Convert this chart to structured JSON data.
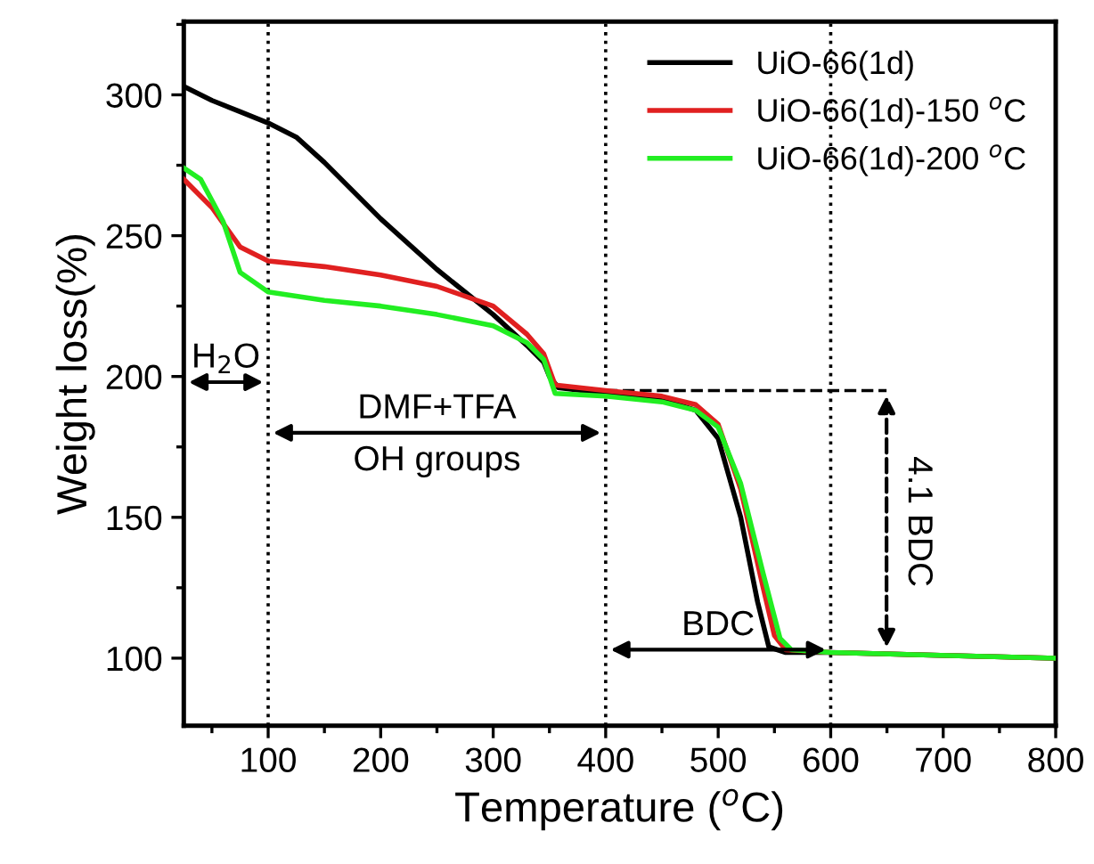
{
  "chart_data": {
    "type": "line",
    "xlabel": "Temperature ($^{o}$C)",
    "ylabel": "Weight loss(%)",
    "xlim": [
      25,
      800
    ],
    "ylim": [
      76,
      326
    ],
    "xticks": [
      100,
      200,
      300,
      400,
      500,
      600,
      700,
      800
    ],
    "yticks": [
      100,
      150,
      200,
      250,
      300
    ],
    "grid": false,
    "legend": "top right",
    "line_style": "solid",
    "marker": "none",
    "series": [
      {
        "name": "UiO-66(1d)",
        "color": "#000000",
        "x": [
          25,
          50,
          75,
          100,
          125,
          150,
          200,
          250,
          300,
          330,
          345,
          350,
          358,
          400,
          450,
          480,
          500,
          520,
          535,
          545,
          560,
          600,
          800
        ],
        "values": [
          303,
          298,
          294,
          290,
          285,
          276,
          256,
          238,
          222,
          211,
          205,
          200,
          196,
          194,
          192,
          188,
          178,
          150,
          120,
          104,
          102,
          102,
          100
        ]
      },
      {
        "name": "UiO-66(1d)-150 $^{o}$C",
        "color": "#e02020",
        "x": [
          25,
          50,
          75,
          100,
          150,
          200,
          250,
          300,
          330,
          345,
          355,
          400,
          450,
          480,
          500,
          520,
          540,
          550,
          560,
          600,
          800
        ],
        "values": [
          270,
          260,
          246,
          241,
          239,
          236,
          232,
          225,
          215,
          208,
          197,
          195,
          193,
          190,
          183,
          160,
          125,
          108,
          103,
          102,
          100
        ]
      },
      {
        "name": "UiO-66(1d)-200 $^{o}$C",
        "color": "#22ee22",
        "x": [
          25,
          40,
          60,
          75,
          100,
          150,
          200,
          250,
          300,
          330,
          345,
          355,
          400,
          450,
          480,
          500,
          520,
          540,
          555,
          565,
          600,
          800
        ],
        "values": [
          274,
          270,
          255,
          237,
          230,
          227,
          225,
          222,
          218,
          212,
          206,
          194,
          193,
          191,
          188,
          182,
          162,
          130,
          107,
          103,
          102,
          100
        ]
      }
    ],
    "ref_lines": [
      {
        "axis": "x",
        "value": 100,
        "label": null,
        "line_style": "dotted",
        "color": "#000000"
      },
      {
        "axis": "x",
        "value": 400,
        "label": null,
        "line_style": "dotted",
        "color": "#000000"
      },
      {
        "axis": "x",
        "value": 600,
        "label": null,
        "line_style": "dotted",
        "color": "#000000"
      },
      {
        "axis": "y",
        "value": 195,
        "label": null,
        "line_style": "dashed",
        "color": "#000000"
      }
    ],
    "annotations": [
      "H$_{2}$O",
      "DMF+TFA",
      "OH groups",
      "BDC",
      "4.1 BDC"
    ]
  }
}
